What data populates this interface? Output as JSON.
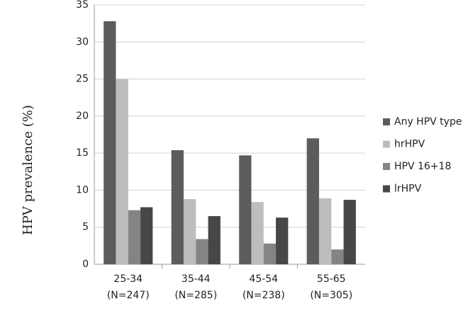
{
  "chart_data": {
    "type": "bar",
    "y_label": "HPV prevalence (%)",
    "categories": [
      "25-34\n(N=247)",
      "35-44\n(N=285)",
      "45-54\n(N=238)",
      "55-65\n(N=305)"
    ],
    "series": [
      {
        "name": "Any HPV type",
        "color": "#5c5c5c",
        "values": [
          32.8,
          15.4,
          14.7,
          17.0
        ]
      },
      {
        "name": "hrHPV",
        "color": "#bdbdbd",
        "values": [
          25.0,
          8.8,
          8.4,
          8.9
        ]
      },
      {
        "name": "HPV 16+18",
        "color": "#848484",
        "values": [
          7.3,
          3.4,
          2.8,
          2.0
        ]
      },
      {
        "name": "lrHPV",
        "color": "#474747",
        "values": [
          7.7,
          6.5,
          6.3,
          8.7
        ]
      }
    ],
    "ylim": [
      0,
      35
    ],
    "yticks": [
      0,
      5,
      10,
      15,
      20,
      25,
      30,
      35
    ],
    "grid": true,
    "legend": "right"
  }
}
